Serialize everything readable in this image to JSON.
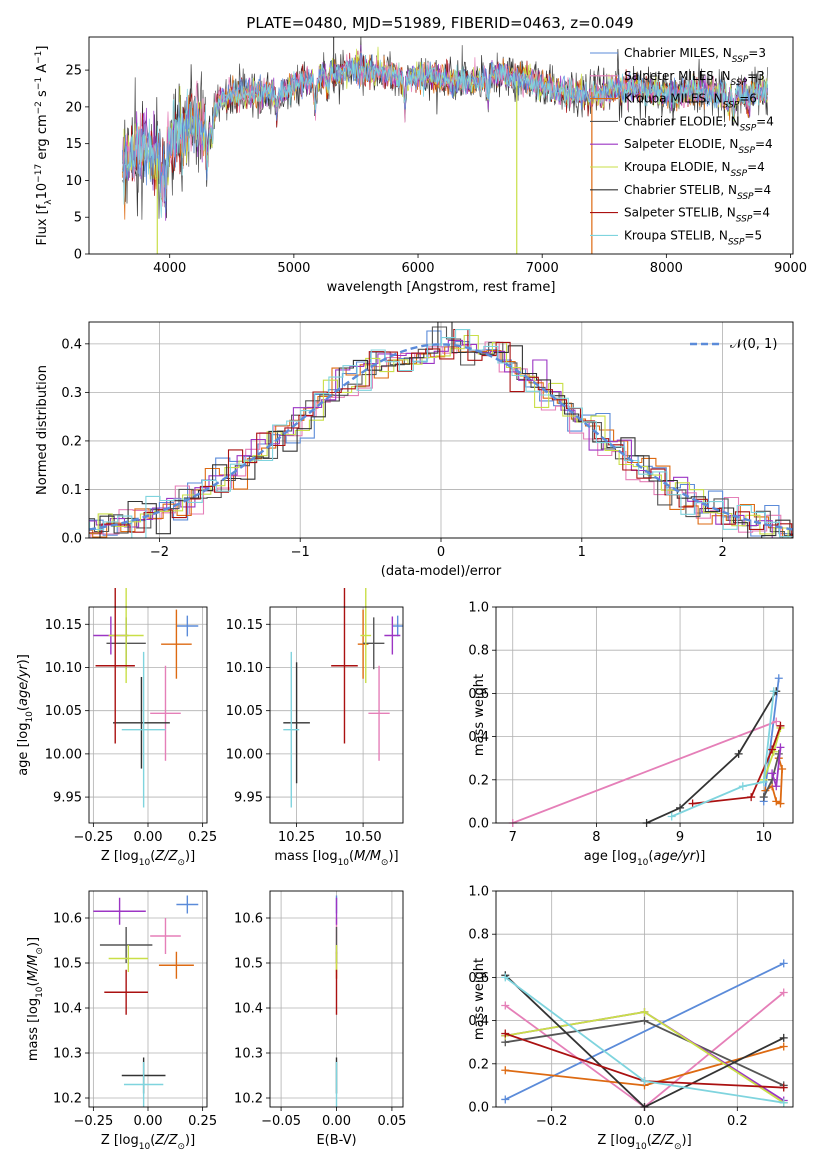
{
  "figure_title": "PLATE=0480, MJD=51989, FIBERID=0463, z=0.049",
  "colors": {
    "series": [
      "#5B8BD9",
      "#E57FB8",
      "#DD6A12",
      "#555555",
      "#9C35C4",
      "#C9DF47",
      "#333333",
      "#AA1111",
      "#7FD4DE"
    ]
  },
  "chart_data": [
    {
      "id": "spectrum",
      "type": "line",
      "title": "PLATE=0480, MJD=51989, FIBERID=0463, z=0.049",
      "xlabel": "wavelength [Angstrom, rest frame]",
      "ylabel": "Flux [f_λ10^-17 erg cm^-2 s^-1 A^-1]",
      "xlim": [
        3350,
        9020
      ],
      "ylim": [
        0,
        29.5
      ],
      "xticks": [
        4000,
        5000,
        6000,
        7000,
        8000,
        9000
      ],
      "yticks": [
        0,
        5,
        10,
        15,
        20,
        25
      ],
      "legend_position": "top-right",
      "legend": [
        {
          "base": "Chabrier MILES, N",
          "sub": "SSP",
          "tail": "=3"
        },
        {
          "base": "Salpeter MILES, N",
          "sub": "SSP",
          "tail": "=3"
        },
        {
          "base": "Kroupa MILES, N",
          "sub": "SSP",
          "tail": "=6"
        },
        {
          "base": "Chabrier ELODIE, N",
          "sub": "SSP",
          "tail": "=4"
        },
        {
          "base": "Salpeter ELODIE, N",
          "sub": "SSP",
          "tail": "=4"
        },
        {
          "base": "Kroupa ELODIE, N",
          "sub": "SSP",
          "tail": "=4"
        },
        {
          "base": "Chabrier STELIB, N",
          "sub": "SSP",
          "tail": "=4"
        },
        {
          "base": "Salpeter STELIB, N",
          "sub": "SSP",
          "tail": "=4"
        },
        {
          "base": "Kroupa STELIB, N",
          "sub": "SSP",
          "tail": "=5"
        }
      ],
      "continuum": [
        [
          3620,
          12
        ],
        [
          3700,
          13.5
        ],
        [
          3800,
          14.5
        ],
        [
          3900,
          13
        ],
        [
          4000,
          15
        ],
        [
          4100,
          17
        ],
        [
          4200,
          18
        ],
        [
          4300,
          17
        ],
        [
          4400,
          21
        ],
        [
          4500,
          21.5
        ],
        [
          4700,
          22
        ],
        [
          4900,
          22
        ],
        [
          5100,
          23.5
        ],
        [
          5300,
          24.5
        ],
        [
          5500,
          25
        ],
        [
          5700,
          24.5
        ],
        [
          5900,
          24
        ],
        [
          6100,
          24.2
        ],
        [
          6300,
          23.2
        ],
        [
          6500,
          23.5
        ],
        [
          6600,
          24.5
        ],
        [
          6800,
          24
        ],
        [
          7000,
          23
        ],
        [
          7200,
          22
        ],
        [
          7400,
          21.5
        ],
        [
          7600,
          22.5
        ],
        [
          7800,
          22.5
        ],
        [
          8000,
          21.5
        ],
        [
          8200,
          22
        ],
        [
          8400,
          21.8
        ],
        [
          8600,
          21.8
        ],
        [
          8800,
          22
        ]
      ],
      "absorption_features": [
        [
          3934,
          5
        ],
        [
          3968,
          6
        ],
        [
          4101,
          3
        ],
        [
          4304,
          5
        ],
        [
          4340,
          3
        ],
        [
          4861,
          3
        ],
        [
          5175,
          4
        ],
        [
          5270,
          2
        ],
        [
          5892,
          4
        ],
        [
          6563,
          3
        ],
        [
          8498,
          2
        ],
        [
          8542,
          3
        ],
        [
          8662,
          2
        ]
      ],
      "spikes": [
        {
          "x": 5320,
          "y": 29.5,
          "down": 0,
          "color_index": 3
        },
        {
          "x": 6795,
          "y": 23.5,
          "down": 1,
          "color_index": 5
        },
        {
          "x": 7400,
          "y": 22,
          "down": 1,
          "color_index": 2
        },
        {
          "x": 3900,
          "y": 13,
          "down": 1,
          "color_index": 5
        }
      ]
    },
    {
      "id": "residuals",
      "type": "histogram",
      "xlabel": "(data-model)/error",
      "ylabel": "Normed distribution",
      "xlim": [
        -2.5,
        2.5
      ],
      "ylim": [
        0,
        0.445
      ],
      "xticks": [
        -2,
        -1,
        0,
        1,
        2
      ],
      "yticks": [
        0,
        0.1,
        0.2,
        0.3,
        0.4
      ],
      "bin_width": 0.1,
      "legend": "𝒩(0, 1)",
      "legend_position": "top-right",
      "reference_curve": "normal(0,1)"
    },
    {
      "id": "age-vs-Z",
      "type": "errorbar",
      "xlabel": "Z [log10(Z/Z⊙)]",
      "ylabel": "age [log10(age/yr)]",
      "xlim": [
        -0.27,
        0.27
      ],
      "ylim": [
        9.92,
        10.17
      ],
      "xticks": [
        -0.25,
        0,
        0.25
      ],
      "xticklabels": [
        "−0.25",
        "0.00",
        "0.25"
      ],
      "yticks": [
        9.95,
        10.0,
        10.05,
        10.1,
        10.15
      ],
      "points": [
        {
          "x": 0.18,
          "xerr": 0.05,
          "y": 10.148,
          "yerr": 0.012,
          "color_index": 0
        },
        {
          "x": 0.08,
          "xerr": 0.07,
          "y": 10.047,
          "yerr": 0.055,
          "color_index": 1
        },
        {
          "x": 0.13,
          "xerr": 0.07,
          "y": 10.127,
          "yerr": 0.04,
          "color_index": 2
        },
        {
          "x": -0.1,
          "xerr": 0.09,
          "y": 10.128,
          "yerr": 0.03,
          "color_index": 3
        },
        {
          "x": -0.17,
          "xerr": 0.08,
          "y": 10.137,
          "yerr": 0.022,
          "color_index": 4
        },
        {
          "x": -0.1,
          "xerr": 0.08,
          "y": 10.137,
          "yerr": 0.055,
          "color_index": 5
        },
        {
          "x": -0.03,
          "xerr": 0.13,
          "y": 10.036,
          "yerr": 0.053,
          "color_index": 6
        },
        {
          "x": -0.15,
          "xerr": 0.09,
          "y": 10.102,
          "yerr": 0.09,
          "color_index": 7
        },
        {
          "x": -0.02,
          "xerr": 0.1,
          "y": 10.028,
          "yerr": 0.09,
          "color_index": 8
        }
      ]
    },
    {
      "id": "age-vs-mass",
      "type": "errorbar",
      "xlabel": "mass [log10(M/M⊙)]",
      "ylabel": "",
      "xlim": [
        10.15,
        10.65
      ],
      "ylim": [
        9.92,
        10.17
      ],
      "xticks": [
        10.25,
        10.5
      ],
      "xticklabels": [
        "10.25",
        "10.50"
      ],
      "yticks": [
        9.95,
        10.0,
        10.05,
        10.1,
        10.15
      ],
      "points": [
        {
          "x": 10.63,
          "xerr": 0.02,
          "y": 10.148,
          "yerr": 0.012,
          "color_index": 0
        },
        {
          "x": 10.56,
          "xerr": 0.04,
          "y": 10.047,
          "yerr": 0.055,
          "color_index": 1
        },
        {
          "x": 10.5,
          "xerr": 0.02,
          "y": 10.127,
          "yerr": 0.04,
          "color_index": 2
        },
        {
          "x": 10.54,
          "xerr": 0.04,
          "y": 10.128,
          "yerr": 0.03,
          "color_index": 3
        },
        {
          "x": 10.61,
          "xerr": 0.03,
          "y": 10.137,
          "yerr": 0.022,
          "color_index": 4
        },
        {
          "x": 10.51,
          "xerr": 0.02,
          "y": 10.137,
          "yerr": 0.055,
          "color_index": 5
        },
        {
          "x": 10.25,
          "xerr": 0.05,
          "y": 10.036,
          "yerr": 0.07,
          "color_index": 6
        },
        {
          "x": 10.43,
          "xerr": 0.05,
          "y": 10.102,
          "yerr": 0.09,
          "color_index": 7
        },
        {
          "x": 10.23,
          "xerr": 0.03,
          "y": 10.028,
          "yerr": 0.09,
          "color_index": 8
        }
      ]
    },
    {
      "id": "weight-vs-age",
      "type": "line",
      "xlabel": "age [log10(age/yr)]",
      "ylabel": "mass weight",
      "xlim": [
        6.8,
        10.35
      ],
      "ylim": [
        0,
        1
      ],
      "xticks": [
        7,
        8,
        9,
        10
      ],
      "yticks": [
        0,
        0.2,
        0.4,
        0.6,
        0.8,
        1.0
      ],
      "series": [
        {
          "color_index": 0,
          "points": [
            [
              10.0,
              0.1
            ],
            [
              10.18,
              0.67
            ]
          ]
        },
        {
          "color_index": 1,
          "points": [
            [
              7.0,
              0.0
            ],
            [
              10.15,
              0.47
            ]
          ]
        },
        {
          "color_index": 2,
          "points": [
            [
              10.02,
              0.15
            ],
            [
              10.1,
              0.17
            ],
            [
              10.15,
              0.1
            ],
            [
              10.2,
              0.09
            ],
            [
              10.22,
              0.25
            ],
            [
              10.18,
              0.3
            ]
          ]
        },
        {
          "color_index": 3,
          "points": [
            [
              10.0,
              0.12
            ],
            [
              10.1,
              0.2
            ],
            [
              10.18,
              0.32
            ]
          ]
        },
        {
          "color_index": 4,
          "points": [
            [
              10.1,
              0.23
            ],
            [
              10.15,
              0.17
            ],
            [
              10.2,
              0.35
            ]
          ]
        },
        {
          "color_index": 5,
          "points": [
            [
              10.0,
              0.2
            ],
            [
              10.12,
              0.33
            ],
            [
              10.2,
              0.44
            ]
          ]
        },
        {
          "color_index": 6,
          "points": [
            [
              8.6,
              0.0
            ],
            [
              9.0,
              0.07
            ],
            [
              9.7,
              0.32
            ],
            [
              10.15,
              0.61
            ]
          ]
        },
        {
          "color_index": 7,
          "points": [
            [
              9.15,
              0.09
            ],
            [
              9.85,
              0.12
            ],
            [
              10.1,
              0.34
            ],
            [
              10.2,
              0.45
            ]
          ]
        },
        {
          "color_index": 8,
          "points": [
            [
              8.9,
              0.03
            ],
            [
              9.75,
              0.17
            ],
            [
              10.0,
              0.19
            ],
            [
              10.12,
              0.61
            ]
          ]
        }
      ]
    },
    {
      "id": "mass-vs-Z",
      "type": "errorbar",
      "xlabel": "Z [log10(Z/Z⊙)]",
      "ylabel": "mass [log10(M/M⊙)]",
      "xlim": [
        -0.27,
        0.27
      ],
      "ylim": [
        10.18,
        10.66
      ],
      "xticks": [
        -0.25,
        0,
        0.25
      ],
      "xticklabels": [
        "−0.25",
        "0.00",
        "0.25"
      ],
      "yticks": [
        10.2,
        10.3,
        10.4,
        10.5,
        10.6
      ],
      "points": [
        {
          "x": 0.18,
          "xerr": 0.05,
          "y": 10.63,
          "yerr": 0.02,
          "color_index": 0
        },
        {
          "x": 0.08,
          "xerr": 0.07,
          "y": 10.56,
          "yerr": 0.04,
          "color_index": 1
        },
        {
          "x": 0.13,
          "xerr": 0.08,
          "y": 10.495,
          "yerr": 0.03,
          "color_index": 2
        },
        {
          "x": -0.1,
          "xerr": 0.12,
          "y": 10.54,
          "yerr": 0.04,
          "color_index": 3
        },
        {
          "x": -0.13,
          "xerr": 0.12,
          "y": 10.615,
          "yerr": 0.03,
          "color_index": 4
        },
        {
          "x": -0.09,
          "xerr": 0.09,
          "y": 10.51,
          "yerr": 0.03,
          "color_index": 5
        },
        {
          "x": -0.02,
          "xerr": 0.1,
          "y": 10.25,
          "yerr": 0.04,
          "color_index": 6
        },
        {
          "x": -0.1,
          "xerr": 0.1,
          "y": 10.435,
          "yerr": 0.05,
          "color_index": 7
        },
        {
          "x": -0.02,
          "xerr": 0.09,
          "y": 10.23,
          "yerr": 0.05,
          "color_index": 8
        }
      ]
    },
    {
      "id": "mass-vs-EBV",
      "type": "errorbar",
      "xlabel": "E(B-V)",
      "ylabel": "",
      "xlim": [
        -0.06,
        0.06
      ],
      "ylim": [
        10.18,
        10.66
      ],
      "xticks": [
        -0.05,
        0,
        0.05
      ],
      "xticklabels": [
        "−0.05",
        "0.00",
        "0.05"
      ],
      "yticks": [
        10.2,
        10.3,
        10.4,
        10.5,
        10.6
      ],
      "points": [
        {
          "x": 0,
          "xerr": 0,
          "y": 10.63,
          "yerr": 0.02,
          "color_index": 0
        },
        {
          "x": 0,
          "xerr": 0,
          "y": 10.56,
          "yerr": 0.04,
          "color_index": 1
        },
        {
          "x": 0,
          "xerr": 0,
          "y": 10.495,
          "yerr": 0.03,
          "color_index": 2
        },
        {
          "x": 0,
          "xerr": 0,
          "y": 10.54,
          "yerr": 0.04,
          "color_index": 3
        },
        {
          "x": 0,
          "xerr": 0,
          "y": 10.615,
          "yerr": 0.03,
          "color_index": 4
        },
        {
          "x": 0,
          "xerr": 0,
          "y": 10.51,
          "yerr": 0.03,
          "color_index": 5
        },
        {
          "x": 0,
          "xerr": 0,
          "y": 10.25,
          "yerr": 0.04,
          "color_index": 6
        },
        {
          "x": 0,
          "xerr": 0,
          "y": 10.435,
          "yerr": 0.05,
          "color_index": 7
        },
        {
          "x": 0,
          "xerr": 0,
          "y": 10.23,
          "yerr": 0.05,
          "color_index": 8
        }
      ]
    },
    {
      "id": "weight-vs-Z",
      "type": "line",
      "xlabel": "Z [log10(Z/Z⊙)]",
      "ylabel": "mass weight",
      "xlim": [
        -0.32,
        0.32
      ],
      "ylim": [
        0,
        1
      ],
      "xticks": [
        -0.2,
        0,
        0.2
      ],
      "xticklabels": [
        "−0.2",
        "0.0",
        "0.2"
      ],
      "yticks": [
        0,
        0.2,
        0.4,
        0.6,
        0.8,
        1.0
      ],
      "series": [
        {
          "color_index": 0,
          "points": [
            [
              -0.3,
              0.035
            ],
            [
              0.3,
              0.665
            ]
          ]
        },
        {
          "color_index": 1,
          "points": [
            [
              -0.3,
              0.47
            ],
            [
              0.0,
              0.0
            ],
            [
              0.3,
              0.53
            ]
          ]
        },
        {
          "color_index": 2,
          "points": [
            [
              -0.3,
              0.17
            ],
            [
              0.0,
              0.1
            ],
            [
              0.3,
              0.28
            ]
          ]
        },
        {
          "color_index": 3,
          "points": [
            [
              -0.3,
              0.3
            ],
            [
              0.0,
              0.4
            ],
            [
              0.3,
              0.1
            ]
          ]
        },
        {
          "color_index": 4,
          "points": [
            [
              -0.3,
              0.33
            ],
            [
              0.0,
              0.44
            ],
            [
              0.3,
              0.03
            ]
          ]
        },
        {
          "color_index": 5,
          "points": [
            [
              -0.3,
              0.33
            ],
            [
              0.0,
              0.44
            ],
            [
              0.3,
              0.02
            ]
          ]
        },
        {
          "color_index": 6,
          "points": [
            [
              -0.3,
              0.61
            ],
            [
              0.0,
              0.0
            ],
            [
              0.3,
              0.32
            ]
          ]
        },
        {
          "color_index": 7,
          "points": [
            [
              -0.3,
              0.34
            ],
            [
              0.0,
              0.12
            ],
            [
              0.3,
              0.09
            ]
          ]
        },
        {
          "color_index": 8,
          "points": [
            [
              -0.3,
              0.6
            ],
            [
              0.0,
              0.12
            ],
            [
              0.3,
              0.02
            ]
          ]
        }
      ]
    }
  ]
}
